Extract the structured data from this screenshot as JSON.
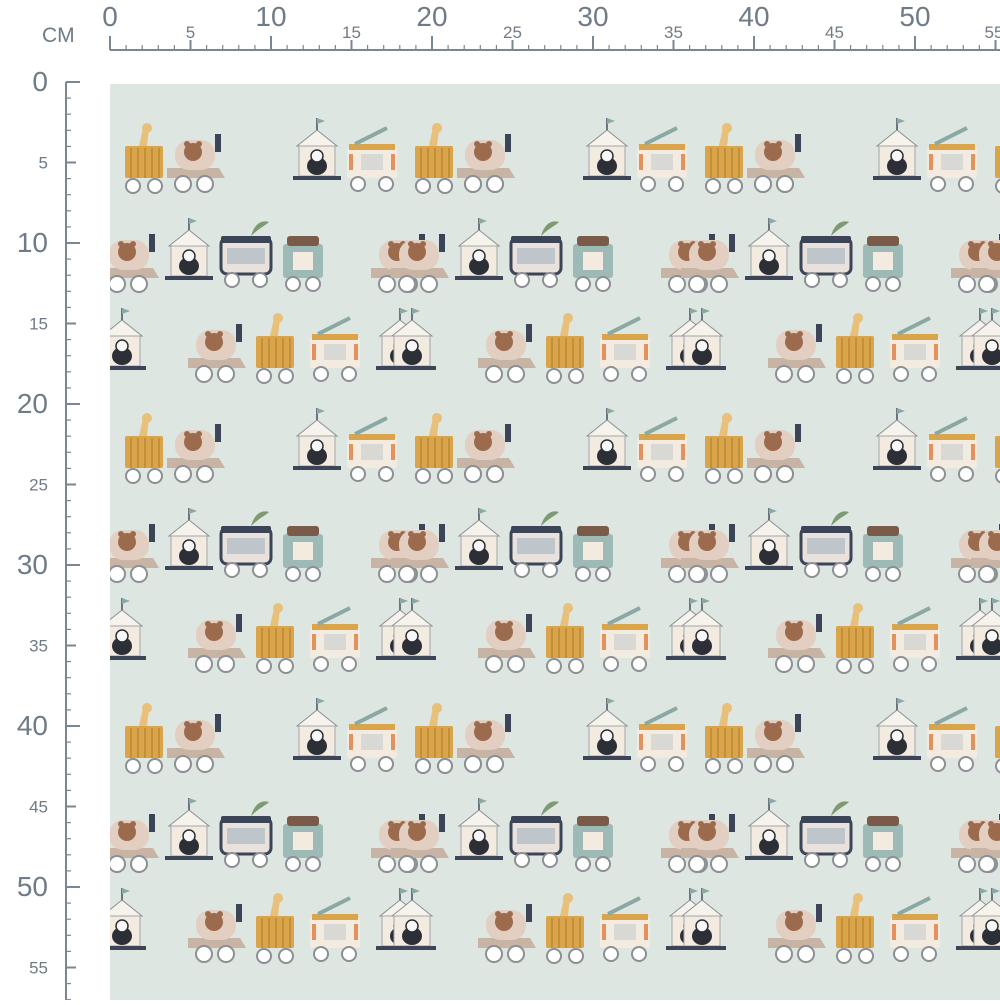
{
  "ruler": {
    "unit_label": "CM",
    "top_major_labels": [
      "0",
      "10",
      "20",
      "30",
      "40",
      "50"
    ],
    "top_minor_labels": [
      "5",
      "15",
      "25",
      "35",
      "45",
      "55"
    ],
    "left_major_labels": [
      "0",
      "10",
      "20",
      "30",
      "40",
      "50"
    ],
    "left_minor_labels": [
      "5",
      "15",
      "25",
      "35",
      "45",
      "55"
    ]
  },
  "colors": {
    "ruler_line": "#7a8691",
    "ruler_text": "#6f7b86",
    "fabric_background": "#dde6e0",
    "mustard": "#d9a44a",
    "blush": "#d9b6a6",
    "taupe": "#cdbfb1",
    "navy": "#3c4557",
    "sage": "#8aa9a4",
    "cream": "#f3ebe0",
    "rust": "#b26a4e"
  },
  "pattern": {
    "motif": "animal-train",
    "train_cars": [
      "giraffe-wagon",
      "bear-locomotive",
      "zoo-house-wagon",
      "bus-wagon",
      "elephant-crane-wagon"
    ]
  }
}
